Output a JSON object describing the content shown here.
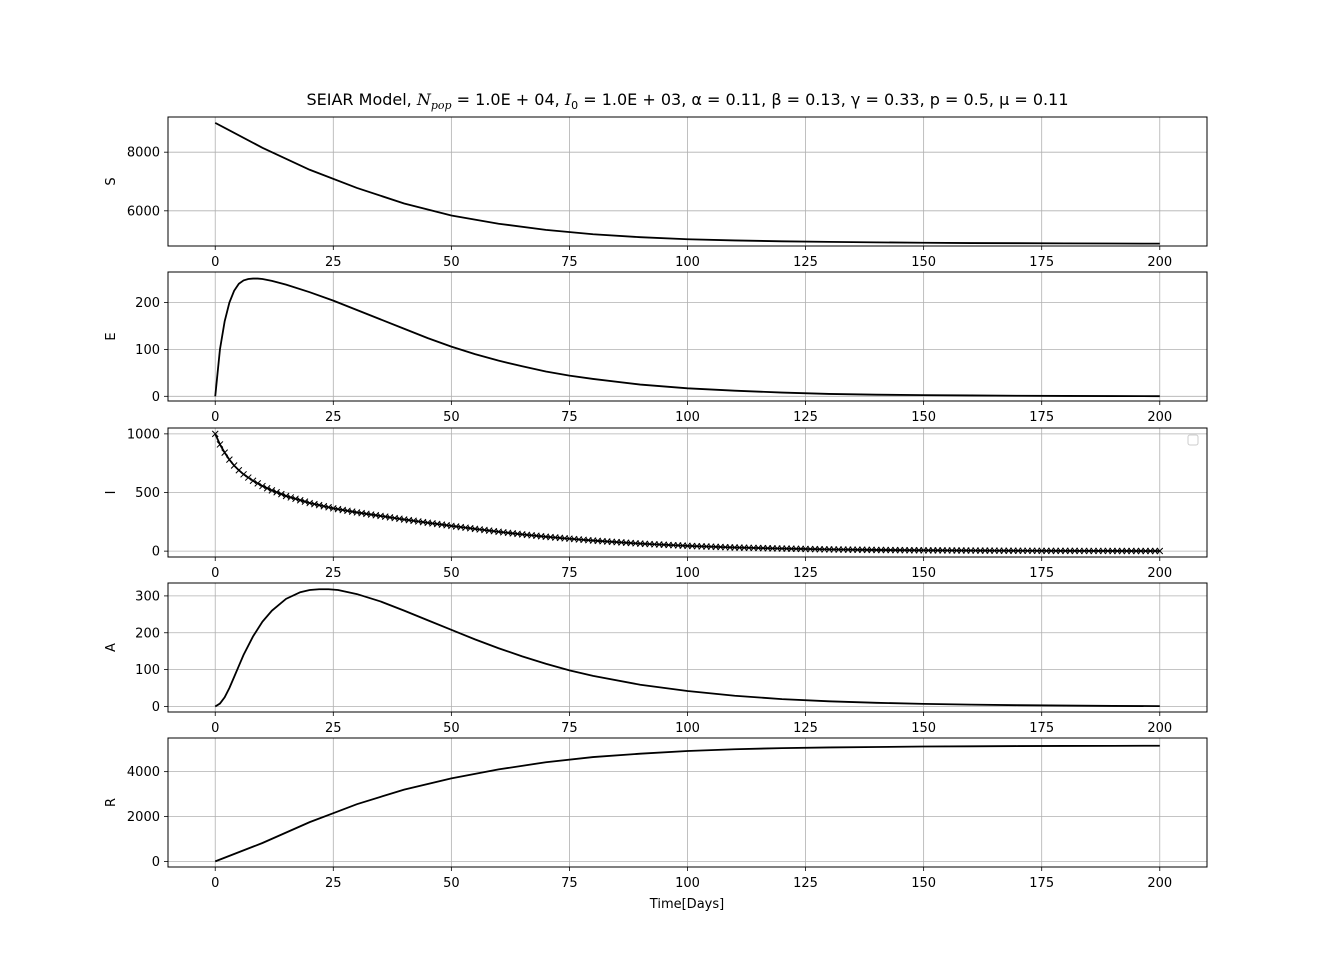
{
  "chart_data": {
    "title": {
      "prefix": "SEIAR Model, ",
      "n_pop_symbol": "N",
      "n_pop_sub": "pop",
      "n_pop_value": " = 1.0E + 04, ",
      "i0_symbol": "I",
      "i0_sub": "0",
      "i0_value": " = 1.0E + 03, ",
      "alpha": "α = 0.11, ",
      "beta": "β = 0.13, ",
      "gamma": "γ = 0.33, ",
      "p": "p = 0.5, ",
      "mu": "μ = 0.11"
    },
    "xlabel": "Time[Days]",
    "x_ticks": [
      0,
      25,
      50,
      75,
      100,
      125,
      150,
      175,
      200
    ],
    "xlim": [
      -10,
      210
    ],
    "grid": true,
    "line_color": "#000000",
    "grid_color": "#b0b0b0",
    "panels": [
      {
        "type": "line",
        "ylabel": "S",
        "ylim": [
          4800,
          9200
        ],
        "y_ticks": [
          6000,
          8000
        ],
        "x": [
          0,
          10,
          20,
          30,
          40,
          50,
          60,
          70,
          80,
          90,
          100,
          110,
          120,
          130,
          140,
          150,
          160,
          170,
          180,
          190,
          200
        ],
        "y": [
          9000,
          8150,
          7400,
          6780,
          6250,
          5840,
          5560,
          5350,
          5200,
          5100,
          5030,
          4990,
          4960,
          4940,
          4925,
          4910,
          4900,
          4895,
          4890,
          4885,
          4880
        ]
      },
      {
        "type": "line",
        "ylabel": "E",
        "ylim": [
          -10,
          265
        ],
        "y_ticks": [
          0,
          100,
          200
        ],
        "x": [
          0,
          1,
          2,
          3,
          4,
          5,
          6,
          7,
          8,
          9,
          10,
          12,
          15,
          20,
          25,
          30,
          35,
          40,
          45,
          50,
          55,
          60,
          65,
          70,
          75,
          80,
          90,
          100,
          110,
          120,
          130,
          140,
          150,
          160,
          170,
          180,
          190,
          200
        ],
        "y": [
          0,
          100,
          160,
          200,
          225,
          240,
          247,
          250,
          251,
          251,
          250,
          246,
          238,
          222,
          204,
          184,
          164,
          144,
          124,
          106,
          90,
          76,
          64,
          53,
          44,
          37,
          25,
          17,
          12,
          8,
          5,
          3.5,
          2.5,
          1.8,
          1.2,
          0.8,
          0.5,
          0.3
        ]
      },
      {
        "type": "line",
        "marker": "x",
        "ylabel": "I",
        "ylim": [
          -50,
          1050
        ],
        "y_ticks": [
          0,
          500,
          1000
        ],
        "legend": "top-right (empty)",
        "x": [
          0,
          1,
          2,
          3,
          4,
          5,
          6,
          8,
          10,
          12,
          15,
          20,
          25,
          30,
          35,
          40,
          45,
          50,
          55,
          60,
          65,
          70,
          75,
          80,
          90,
          100,
          110,
          120,
          130,
          140,
          150,
          160,
          170,
          180,
          190,
          200
        ],
        "y": [
          1000,
          910,
          840,
          780,
          730,
          690,
          655,
          600,
          555,
          518,
          470,
          410,
          365,
          330,
          300,
          270,
          242,
          215,
          190,
          165,
          143,
          123,
          106,
          90,
          64,
          45,
          31,
          22,
          15,
          10,
          7,
          5,
          3,
          2,
          1.5,
          1
        ]
      },
      {
        "type": "line",
        "ylabel": "A",
        "ylim": [
          -15,
          335
        ],
        "y_ticks": [
          0,
          100,
          200,
          300
        ],
        "x": [
          0,
          1,
          2,
          3,
          4,
          5,
          6,
          8,
          10,
          12,
          15,
          18,
          20,
          22,
          24,
          26,
          30,
          35,
          40,
          45,
          50,
          55,
          60,
          65,
          70,
          75,
          80,
          90,
          100,
          110,
          120,
          130,
          140,
          150,
          160,
          170,
          180,
          190,
          200
        ],
        "y": [
          0,
          8,
          25,
          50,
          80,
          110,
          140,
          190,
          230,
          260,
          292,
          310,
          316,
          318,
          318,
          316,
          305,
          285,
          260,
          234,
          208,
          182,
          158,
          136,
          116,
          98,
          83,
          59,
          42,
          29,
          20,
          14,
          10,
          7,
          5,
          3.5,
          2.5,
          1.5,
          1
        ]
      },
      {
        "type": "line",
        "ylabel": "R",
        "ylim": [
          -250,
          5500
        ],
        "y_ticks": [
          0,
          2000,
          4000
        ],
        "x": [
          0,
          10,
          20,
          25,
          30,
          40,
          50,
          60,
          70,
          80,
          90,
          100,
          110,
          120,
          130,
          140,
          150,
          160,
          170,
          180,
          190,
          200
        ],
        "y": [
          0,
          820,
          1750,
          2150,
          2550,
          3200,
          3700,
          4100,
          4420,
          4650,
          4800,
          4920,
          5000,
          5050,
          5080,
          5100,
          5120,
          5130,
          5140,
          5145,
          5150,
          5155
        ]
      }
    ]
  }
}
